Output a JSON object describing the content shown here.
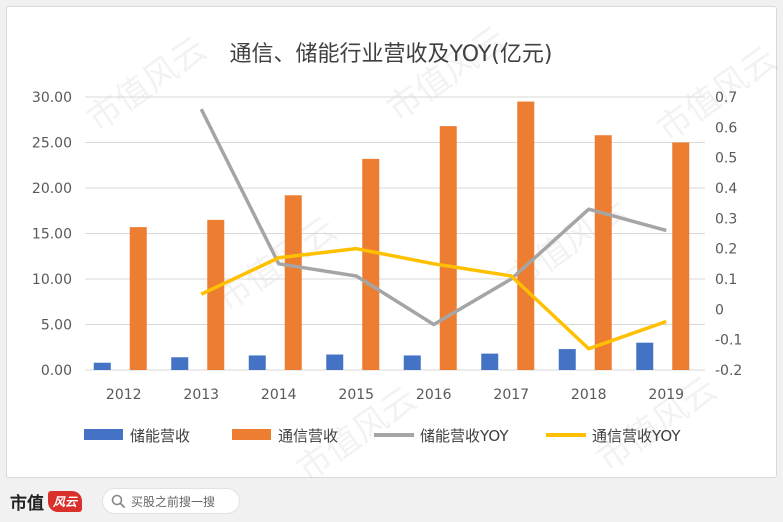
{
  "chart_data": {
    "type": "bar",
    "title": "通信、储能行业营收及YOY(亿元)",
    "categories": [
      "2012",
      "2013",
      "2014",
      "2015",
      "2016",
      "2017",
      "2018",
      "2019"
    ],
    "ylim": [
      0,
      30
    ],
    "y_ticks": [
      "30.00",
      "25.00",
      "20.00",
      "15.00",
      "10.00",
      "5.00",
      "0.00"
    ],
    "y2lim": [
      -0.2,
      0.7
    ],
    "y2_ticks": [
      "0.7",
      "0.6",
      "0.5",
      "0.4",
      "0.3",
      "0.2",
      "0.1",
      "0",
      "-0.1",
      "-0.2"
    ],
    "grid": true,
    "legend_position": "bottom",
    "series": [
      {
        "name": "储能营收",
        "kind": "bar",
        "axis": "left",
        "color": "#4472c4",
        "values": [
          0.8,
          1.4,
          1.6,
          1.7,
          1.6,
          1.8,
          2.3,
          3.0
        ]
      },
      {
        "name": "通信营收",
        "kind": "bar",
        "axis": "left",
        "color": "#ed7d31",
        "values": [
          15.7,
          16.5,
          19.2,
          23.2,
          26.8,
          29.5,
          25.8,
          25.0
        ]
      },
      {
        "name": "储能营收YOY",
        "kind": "line",
        "axis": "right",
        "color": "#a5a5a5",
        "values": [
          null,
          0.66,
          0.15,
          0.11,
          -0.05,
          0.1,
          0.33,
          0.26
        ]
      },
      {
        "name": "通信营收YOY",
        "kind": "line",
        "axis": "right",
        "color": "#ffc000",
        "values": [
          null,
          0.05,
          0.17,
          0.2,
          0.15,
          0.11,
          -0.13,
          -0.04
        ]
      }
    ]
  },
  "watermark_text": "市值风云",
  "footer": {
    "brand": "市值",
    "brand_logo": "风云",
    "search_icon": "search-icon",
    "search_text": "买股之前搜一搜"
  }
}
